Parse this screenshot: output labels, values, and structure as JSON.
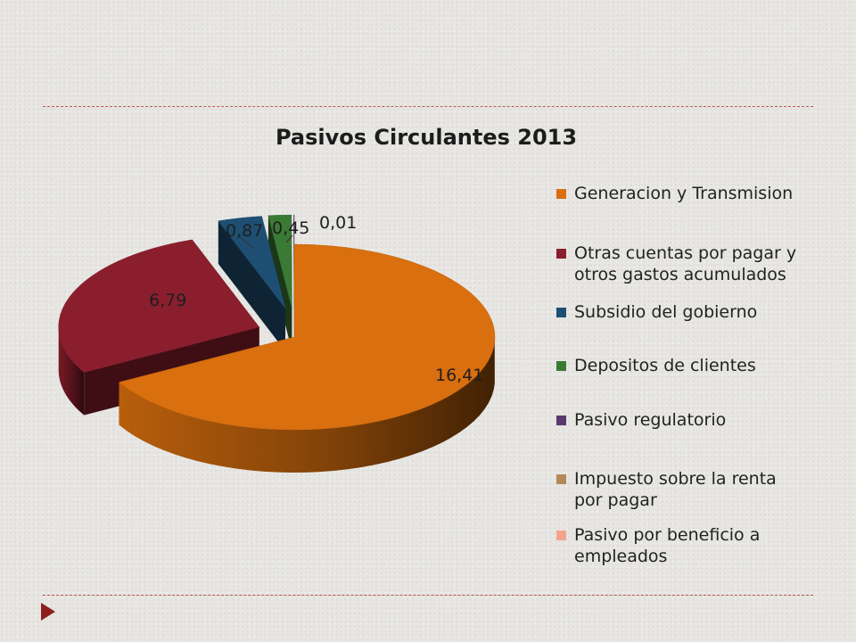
{
  "chart_data": {
    "type": "pie",
    "title": "Pasivos Circulantes 2013",
    "categories": [
      "Generacion y Transmision",
      "Otras cuentas por pagar y otros gastos acumulados",
      "Subsidio del gobierno",
      "Depositos de clientes",
      "Pasivo regulatorio",
      "Impuesto sobre la renta por pagar",
      "Pasivo por beneficio a empleados"
    ],
    "legend_lines": [
      [
        "Generacion y Transmision"
      ],
      [
        "Otras cuentas por pagar y",
        "otros gastos acumulados"
      ],
      [
        "Subsidio del gobierno"
      ],
      [
        "Depositos de clientes"
      ],
      [
        "Pasivo regulatorio"
      ],
      [
        "Impuesto sobre la renta",
        "por pagar"
      ],
      [
        "Pasivo por beneficio a",
        "empleados"
      ]
    ],
    "values": [
      16.41,
      6.79,
      0.87,
      0.45,
      0.01,
      null,
      null
    ],
    "data_labels": [
      "16,41",
      "6,79",
      "0,87",
      "0,45",
      "0,01",
      "",
      ""
    ],
    "colors": [
      "#d96f0e",
      "#8b1e2d",
      "#1e4f73",
      "#3b7a35",
      "#5a3a6e",
      "#b48a5a",
      "#f2a58c"
    ],
    "legend_position": "right",
    "style": "3d exploded pie"
  }
}
